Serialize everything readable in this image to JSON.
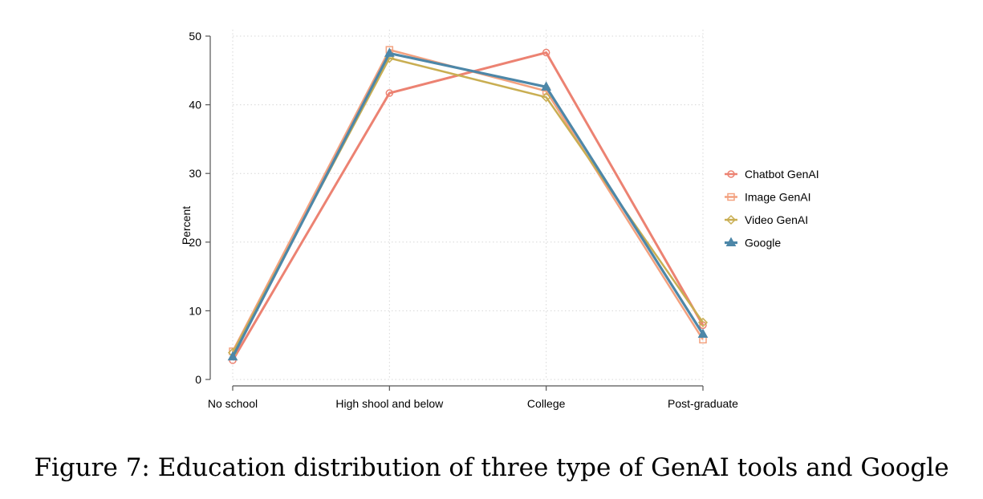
{
  "chart_data": {
    "type": "line",
    "title": "",
    "xlabel": "",
    "ylabel": "Percent",
    "categories": [
      "No school",
      "High shool and below",
      "College",
      "Post-graduate"
    ],
    "yticks": [
      0,
      10,
      20,
      30,
      40,
      50
    ],
    "ylim": [
      0,
      50
    ],
    "grid": true,
    "legend_position": "right",
    "series": [
      {
        "name": "Chatbot GenAI",
        "color": "#EC8272",
        "marker": "circle",
        "values": [
          2.8,
          41.7,
          47.6,
          7.9
        ]
      },
      {
        "name": "Image GenAI",
        "color": "#F3A17F",
        "marker": "square",
        "values": [
          4.1,
          48.0,
          42.0,
          5.8
        ]
      },
      {
        "name": "Video GenAI",
        "color": "#C9AE52",
        "marker": "diamond",
        "values": [
          3.9,
          46.8,
          41.1,
          8.3
        ]
      },
      {
        "name": "Google",
        "color": "#4D87A8",
        "marker": "triangle",
        "values": [
          3.3,
          47.5,
          42.6,
          6.6
        ]
      }
    ]
  },
  "caption": "Figure 7: Education distribution of three type of GenAI tools and Google"
}
